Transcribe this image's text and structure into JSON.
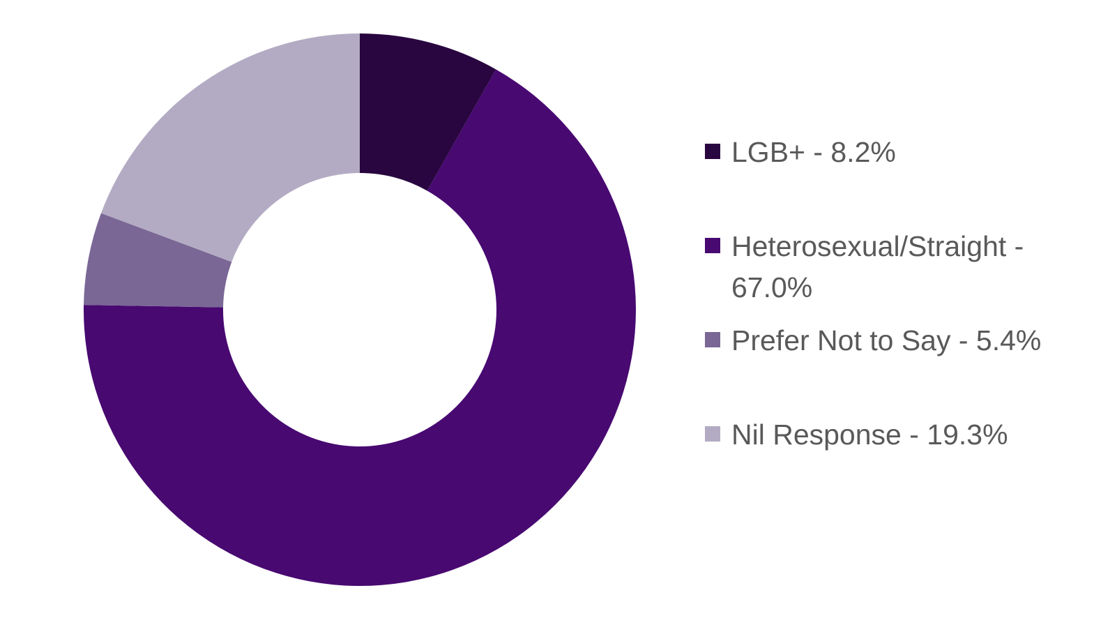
{
  "chart_data": {
    "type": "pie",
    "subtype": "donut",
    "title": "",
    "legend_position": "right",
    "background_color": "#FFFFFF",
    "legend_text_color": "#595959",
    "donut_hole_ratio": 0.495,
    "start_angle_deg": 0,
    "direction": "clockwise",
    "segments": [
      {
        "label": "LGB+",
        "value": 8.2,
        "unit": "%",
        "color": "#290640",
        "legend_text": "LGB+ - 8.2%"
      },
      {
        "label": "Heterosexual/Straight",
        "value": 67.0,
        "unit": "%",
        "color": "#480971",
        "legend_text": "Heterosexual/Straight - 67.0%"
      },
      {
        "label": "Prefer Not to Say",
        "value": 5.4,
        "unit": "%",
        "color": "#7A6795",
        "legend_text": "Prefer Not to Say - 5.4%"
      },
      {
        "label": "Nil Response",
        "value": 19.3,
        "unit": "%",
        "color": "#B3ABC3",
        "legend_text": "Nil Response - 19.3%"
      }
    ]
  }
}
